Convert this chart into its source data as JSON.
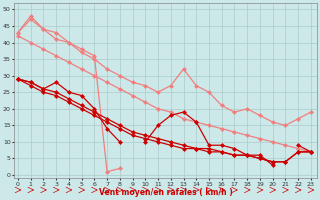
{
  "xlabel": "Vent moyen/en rafales ( km/h )",
  "bg_color": "#cce8e8",
  "grid_color": "#aacccc",
  "x_ticks": [
    0,
    1,
    2,
    3,
    4,
    5,
    6,
    7,
    8,
    9,
    10,
    11,
    12,
    13,
    14,
    15,
    16,
    17,
    18,
    19,
    20,
    21,
    22,
    23
  ],
  "y_ticks": [
    0,
    5,
    10,
    15,
    20,
    25,
    30,
    35,
    40,
    45,
    50
  ],
  "ylim": [
    -1,
    52
  ],
  "xlim": [
    -0.3,
    23.5
  ],
  "color_light": "#f08080",
  "color_dark": "#cc0000",
  "marker_size": 2.5,
  "linewidth": 0.9,
  "lines_light": [
    [
      43,
      48,
      44,
      41,
      40,
      37,
      35,
      32,
      30,
      28,
      27,
      25,
      27,
      32,
      27,
      25,
      21,
      19,
      20,
      18,
      16,
      15,
      17,
      19
    ],
    [
      42,
      40,
      38,
      36,
      34,
      32,
      30,
      28,
      26,
      24,
      22,
      20,
      19,
      17,
      16,
      15,
      14,
      13,
      12,
      11,
      10,
      9,
      8,
      7
    ],
    [
      43,
      47,
      44,
      43,
      40,
      38,
      36,
      1,
      2,
      null,
      null,
      null,
      null,
      null,
      null,
      null,
      null,
      null,
      null,
      null,
      null,
      null,
      null,
      null
    ]
  ],
  "lines_dark": [
    [
      29,
      28,
      26,
      28,
      25,
      24,
      20,
      14,
      10,
      null,
      10,
      15,
      18,
      19,
      16,
      9,
      9,
      8,
      6,
      6,
      3,
      null,
      9,
      7
    ],
    [
      29,
      27,
      25,
      24,
      22,
      20,
      18,
      16,
      14,
      12,
      11,
      10,
      9,
      8,
      8,
      7,
      7,
      6,
      6,
      5,
      4,
      4,
      7,
      7
    ],
    [
      29,
      28,
      26,
      25,
      23,
      21,
      19,
      17,
      15,
      13,
      12,
      11,
      10,
      9,
      8,
      8,
      7,
      6,
      6,
      5,
      4,
      4,
      7,
      7
    ]
  ]
}
